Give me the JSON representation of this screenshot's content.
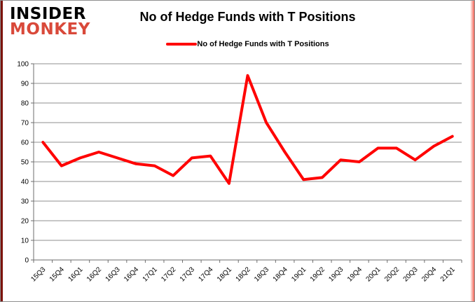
{
  "logo": {
    "line1": "INSIDER",
    "line2": "MONKEY",
    "color1": "#000000",
    "color2": "#d9493a"
  },
  "header": {
    "title": "No of Hedge Funds with T Positions"
  },
  "legend": {
    "label": "No of Hedge Funds with T Positions",
    "swatch_color": "#ff0000"
  },
  "chart_data": {
    "type": "line",
    "title": "No of Hedge Funds with T Positions",
    "series_name": "No of Hedge Funds with T Positions",
    "categories": [
      "15Q3",
      "15Q4",
      "16Q1",
      "16Q2",
      "16Q3",
      "16Q4",
      "17Q1",
      "17Q2",
      "17Q3",
      "17Q4",
      "18Q1",
      "18Q2",
      "18Q3",
      "18Q4",
      "19Q1",
      "19Q2",
      "19Q3",
      "19Q4",
      "20Q1",
      "20Q2",
      "20Q3",
      "20Q4",
      "21Q1"
    ],
    "values": [
      60,
      48,
      52,
      55,
      52,
      49,
      48,
      43,
      52,
      53,
      39,
      94,
      70,
      55,
      41,
      42,
      51,
      50,
      57,
      57,
      51,
      58,
      63
    ],
    "ylim": [
      0,
      100
    ],
    "ytick_step": 10,
    "grid": true,
    "legend_position": "top",
    "line_color": "#ff0000",
    "grid_color": "#8f8f8f",
    "axis_color": "#6e6e6e",
    "label_color": "#000000"
  }
}
